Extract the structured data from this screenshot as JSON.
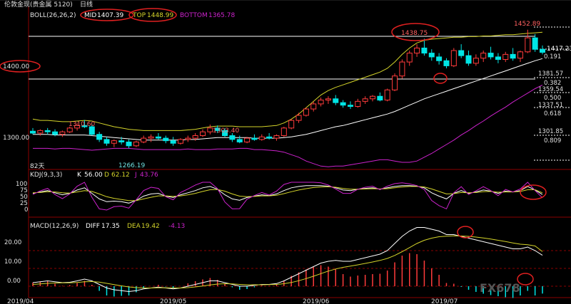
{
  "window_title": "伦敦金现(贵金属 5120)",
  "period": "日线",
  "boll_panel": {
    "label": "BOLL(26,26,2)",
    "mid_label": "MID",
    "mid_value": "1407.39",
    "top_label": "TOP",
    "top_value": "1448.99",
    "bottom_label": "BOTTOM",
    "bottom_value": "1365.78",
    "price_ticks": [
      "1400.00",
      "1300.00"
    ],
    "annotations": {
      "high_1": "1310.60",
      "low_1": "1266.19",
      "high_2": "1303.40",
      "high_3": "1438.75",
      "high_4": "1452.89",
      "last": "1417.23",
      "days_label": "82天"
    },
    "fib_levels": [
      {
        "price": "1381.57",
        "ratio": "0.382"
      },
      {
        "price": "1359.54",
        "ratio": "0.500"
      },
      {
        "price": "1337.51",
        "ratio": "0.618"
      },
      {
        "price": "1301.85",
        "ratio": "0.809"
      }
    ],
    "fib_top_ratio": "0.191"
  },
  "kdj_panel": {
    "label": "KDJ(9,3,3)",
    "k_label": "K",
    "k_value": "56.00",
    "d_label": "D",
    "d_value": "62.12",
    "j_label": "J",
    "j_value": "43.76",
    "ticks": [
      "100",
      "75",
      "50",
      "25",
      "0"
    ]
  },
  "macd_panel": {
    "label": "MACD(12,26,9)",
    "diff_label": "DIFF",
    "diff_value": "17.35",
    "dea_label": "DEA",
    "dea_value": "19.42",
    "macd_value": "-4.13",
    "ticks": [
      "20.00",
      "10.00",
      "0.00"
    ]
  },
  "x_axis": [
    "2019/04",
    "2019/05",
    "2019/06",
    "2019/07"
  ],
  "watermark": "FX678",
  "colors": {
    "up": "#ff3b3b",
    "down": "#00e5e5",
    "mid": "#ffffff",
    "top": "#d4d42a",
    "bottom": "#cc22cc",
    "annotation": "#e02020"
  },
  "chart_data": {
    "type": "candlestick",
    "candles": [
      [
        1293,
        1298,
        1288,
        1290
      ],
      [
        1290,
        1296,
        1286,
        1294
      ],
      [
        1294,
        1298,
        1288,
        1292
      ],
      [
        1292,
        1296,
        1285,
        1288
      ],
      [
        1288,
        1294,
        1284,
        1292
      ],
      [
        1292,
        1300,
        1290,
        1298
      ],
      [
        1298,
        1306,
        1294,
        1302
      ],
      [
        1302,
        1310.6,
        1298,
        1300
      ],
      [
        1300,
        1304,
        1286,
        1288
      ],
      [
        1288,
        1292,
        1276,
        1280
      ],
      [
        1280,
        1284,
        1270,
        1274
      ],
      [
        1274,
        1280,
        1268,
        1278
      ],
      [
        1278,
        1284,
        1272,
        1276
      ],
      [
        1276,
        1280,
        1266.19,
        1270
      ],
      [
        1270,
        1278,
        1268,
        1276
      ],
      [
        1276,
        1286,
        1274,
        1282
      ],
      [
        1282,
        1288,
        1276,
        1284
      ],
      [
        1284,
        1290,
        1280,
        1282
      ],
      [
        1282,
        1286,
        1274,
        1278
      ],
      [
        1278,
        1284,
        1270,
        1274
      ],
      [
        1274,
        1282,
        1272,
        1280
      ],
      [
        1280,
        1286,
        1276,
        1282
      ],
      [
        1282,
        1290,
        1278,
        1286
      ],
      [
        1286,
        1296,
        1284,
        1292
      ],
      [
        1292,
        1303.4,
        1288,
        1298
      ],
      [
        1298,
        1302,
        1290,
        1294
      ],
      [
        1294,
        1298,
        1284,
        1286
      ],
      [
        1286,
        1290,
        1276,
        1280
      ],
      [
        1280,
        1286,
        1274,
        1276
      ],
      [
        1276,
        1284,
        1274,
        1282
      ],
      [
        1282,
        1288,
        1278,
        1280
      ],
      [
        1280,
        1288,
        1278,
        1284
      ],
      [
        1284,
        1290,
        1280,
        1282
      ],
      [
        1282,
        1288,
        1278,
        1286
      ],
      [
        1286,
        1300,
        1284,
        1298
      ],
      [
        1298,
        1312,
        1296,
        1310
      ],
      [
        1310,
        1322,
        1306,
        1318
      ],
      [
        1318,
        1330,
        1316,
        1328
      ],
      [
        1328,
        1340,
        1324,
        1336
      ],
      [
        1336,
        1346,
        1332,
        1342
      ],
      [
        1342,
        1348,
        1336,
        1344
      ],
      [
        1344,
        1350,
        1334,
        1338
      ],
      [
        1338,
        1342,
        1330,
        1334
      ],
      [
        1334,
        1340,
        1328,
        1332
      ],
      [
        1332,
        1344,
        1330,
        1340
      ],
      [
        1340,
        1348,
        1336,
        1344
      ],
      [
        1344,
        1350,
        1340,
        1348
      ],
      [
        1348,
        1354,
        1340,
        1342
      ],
      [
        1342,
        1360,
        1340,
        1358
      ],
      [
        1358,
        1384,
        1356,
        1380
      ],
      [
        1380,
        1406,
        1376,
        1402
      ],
      [
        1402,
        1420,
        1396,
        1416
      ],
      [
        1416,
        1430,
        1410,
        1424
      ],
      [
        1424,
        1438.75,
        1412,
        1416
      ],
      [
        1416,
        1422,
        1404,
        1410
      ],
      [
        1410,
        1416,
        1398,
        1404
      ],
      [
        1404,
        1408,
        1392,
        1396
      ],
      [
        1396,
        1424,
        1394,
        1420
      ],
      [
        1420,
        1430,
        1408,
        1412
      ],
      [
        1412,
        1420,
        1396,
        1400
      ],
      [
        1400,
        1414,
        1396,
        1408
      ],
      [
        1408,
        1420,
        1402,
        1416
      ],
      [
        1416,
        1426,
        1406,
        1410
      ],
      [
        1410,
        1416,
        1400,
        1406
      ],
      [
        1406,
        1418,
        1402,
        1414
      ],
      [
        1414,
        1424,
        1404,
        1408
      ],
      [
        1408,
        1420,
        1402,
        1418
      ],
      [
        1418,
        1452.89,
        1416,
        1440
      ],
      [
        1440,
        1446,
        1418,
        1422
      ],
      [
        1422,
        1428,
        1414,
        1417.23
      ]
    ],
    "mid_band": [
      1288,
      1288,
      1288,
      1287,
      1287,
      1287,
      1287,
      1287,
      1286,
      1285,
      1284,
      1283,
      1282,
      1281,
      1280,
      1279,
      1279,
      1279,
      1279,
      1279,
      1279,
      1280,
      1280,
      1281,
      1282,
      1283,
      1283,
      1283,
      1283,
      1283,
      1282,
      1282,
      1282,
      1282,
      1283,
      1284,
      1286,
      1288,
      1291,
      1294,
      1297,
      1300,
      1302,
      1305,
      1308,
      1311,
      1314,
      1317,
      1320,
      1324,
      1329,
      1334,
      1339,
      1344,
      1348,
      1352,
      1356,
      1360,
      1364,
      1368,
      1372,
      1376,
      1380,
      1384,
      1388,
      1392,
      1396,
      1400,
      1404,
      1407.39
    ],
    "top_band": [
      1312,
      1310,
      1310,
      1309,
      1308,
      1308,
      1309,
      1310,
      1309,
      1306,
      1303,
      1300,
      1298,
      1296,
      1295,
      1294,
      1294,
      1294,
      1294,
      1294,
      1294,
      1295,
      1296,
      1298,
      1300,
      1301,
      1301,
      1301,
      1300,
      1300,
      1300,
      1300,
      1301,
      1302,
      1306,
      1312,
      1320,
      1330,
      1340,
      1350,
      1357,
      1362,
      1366,
      1370,
      1374,
      1378,
      1382,
      1386,
      1392,
      1402,
      1414,
      1424,
      1432,
      1436,
      1438,
      1439,
      1440,
      1441,
      1441,
      1442,
      1442,
      1443,
      1443,
      1444,
      1445,
      1445,
      1446,
      1447,
      1448,
      1448.99
    ],
    "bottom_band": [
      1266,
      1266,
      1266,
      1265,
      1266,
      1266,
      1265,
      1264,
      1263,
      1264,
      1265,
      1266,
      1266,
      1266,
      1265,
      1264,
      1264,
      1264,
      1264,
      1264,
      1264,
      1265,
      1264,
      1264,
      1264,
      1265,
      1265,
      1265,
      1266,
      1266,
      1264,
      1264,
      1263,
      1262,
      1260,
      1256,
      1252,
      1246,
      1242,
      1238,
      1237,
      1238,
      1238,
      1240,
      1242,
      1244,
      1246,
      1248,
      1248,
      1246,
      1244,
      1244,
      1246,
      1252,
      1258,
      1265,
      1272,
      1279,
      1287,
      1294,
      1302,
      1309,
      1317,
      1324,
      1331,
      1339,
      1346,
      1353,
      1360,
      1365.78
    ],
    "kdj": {
      "k": [
        60,
        65,
        70,
        62,
        55,
        60,
        72,
        80,
        60,
        40,
        30,
        32,
        30,
        25,
        35,
        50,
        58,
        60,
        50,
        45,
        55,
        62,
        70,
        80,
        85,
        75,
        55,
        40,
        35,
        45,
        50,
        55,
        52,
        58,
        70,
        80,
        85,
        88,
        88,
        88,
        86,
        80,
        72,
        70,
        75,
        78,
        80,
        75,
        80,
        85,
        88,
        88,
        86,
        80,
        62,
        50,
        40,
        60,
        70,
        60,
        65,
        72,
        68,
        60,
        68,
        65,
        70,
        85,
        72,
        56
      ],
      "d": [
        62,
        63,
        66,
        65,
        62,
        61,
        65,
        70,
        67,
        58,
        48,
        42,
        38,
        34,
        34,
        40,
        46,
        51,
        51,
        49,
        51,
        55,
        60,
        67,
        73,
        74,
        68,
        58,
        50,
        48,
        49,
        51,
        51,
        53,
        59,
        66,
        72,
        77,
        81,
        83,
        84,
        82,
        78,
        75,
        75,
        76,
        77,
        76,
        77,
        80,
        83,
        85,
        85,
        83,
        76,
        67,
        58,
        59,
        63,
        62,
        63,
        66,
        67,
        64,
        65,
        65,
        67,
        73,
        73,
        62.12
      ],
      "j": [
        56,
        69,
        78,
        56,
        41,
        58,
        86,
        100,
        46,
        4,
        0,
        12,
        14,
        7,
        37,
        70,
        82,
        78,
        48,
        37,
        63,
        76,
        90,
        100,
        100,
        77,
        29,
        4,
        5,
        39,
        52,
        63,
        54,
        68,
        92,
        100,
        100,
        100,
        100,
        98,
        90,
        76,
        60,
        60,
        75,
        82,
        86,
        73,
        86,
        95,
        98,
        94,
        88,
        74,
        34,
        16,
        4,
        62,
        84,
        56,
        69,
        84,
        70,
        52,
        74,
        65,
        76,
        100,
        70,
        43.76
      ]
    },
    "macd": {
      "diff": [
        2,
        2.5,
        3,
        2.5,
        2,
        2.2,
        3,
        4,
        3,
        1,
        -1,
        -2,
        -2.5,
        -3,
        -2.5,
        -1.5,
        -1,
        -0.5,
        -1,
        -1.5,
        -1,
        0,
        1,
        2,
        3,
        3,
        2,
        1,
        0,
        0,
        0.5,
        1,
        1,
        1.5,
        3,
        5,
        7,
        9,
        11,
        13,
        14,
        14.5,
        14,
        14,
        15,
        16,
        17,
        18,
        20,
        24,
        28,
        31,
        33,
        33,
        32,
        31,
        29,
        29,
        28,
        27,
        26,
        25,
        24,
        23,
        22,
        21,
        21,
        22,
        20,
        17.35
      ],
      "dea": [
        1,
        1.3,
        1.6,
        1.8,
        1.9,
        1.9,
        2.1,
        2.5,
        2.6,
        2.3,
        1.6,
        0.9,
        0.2,
        -0.4,
        -0.8,
        -1,
        -1,
        -0.9,
        -0.9,
        -1,
        -1,
        -0.8,
        -0.4,
        0.1,
        0.7,
        1.2,
        1.4,
        1.3,
        1,
        0.8,
        0.8,
        0.8,
        0.9,
        1,
        1.4,
        2.1,
        3.1,
        4.3,
        5.6,
        7.1,
        8.5,
        9.7,
        10.6,
        11.3,
        12,
        12.8,
        13.6,
        14.5,
        15.6,
        17.3,
        19.4,
        21.7,
        24,
        25.8,
        27,
        27.8,
        28.1,
        28.3,
        28.2,
        28,
        27.6,
        27.1,
        26.5,
        25.8,
        25.1,
        24.3,
        23.6,
        23.3,
        22.6,
        19.42
      ]
    },
    "ylim_price": [
      1235,
      1466
    ],
    "ylim_kdj": [
      0,
      100
    ],
    "ylim_macd": [
      -4,
      36
    ]
  }
}
